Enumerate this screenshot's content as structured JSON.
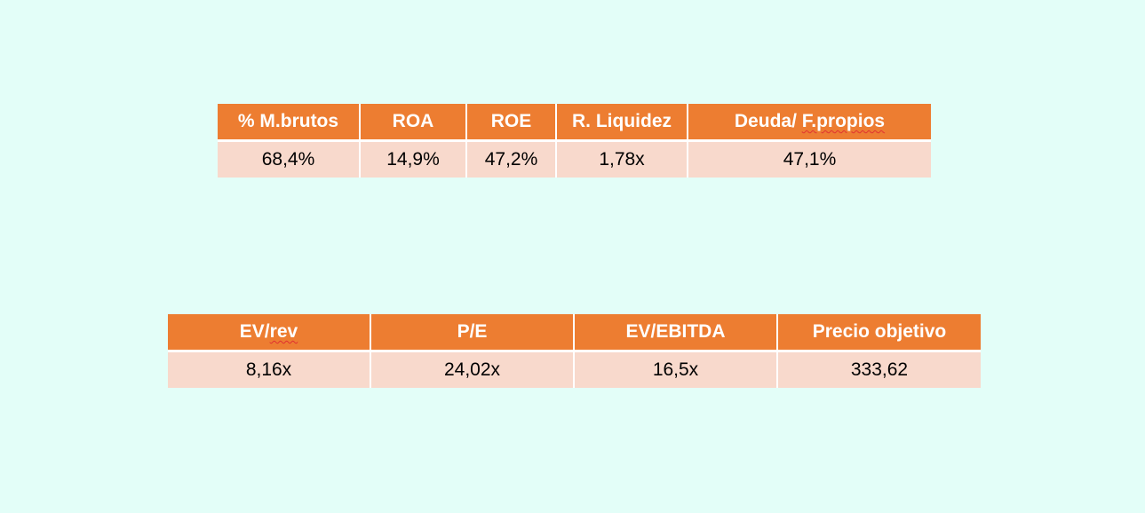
{
  "ratios_table": {
    "headers": [
      "% M.brutos",
      "ROA",
      "ROE",
      "R. Liquidez",
      "Deuda/ ",
      "F.propios"
    ],
    "values": [
      "68,4%",
      "14,9%",
      "47,2%",
      "1,78x",
      "47,1%"
    ]
  },
  "valuation_table": {
    "headers": [
      "EV/",
      "rev",
      "P/E",
      "EV/EBITDA",
      "Precio objetivo"
    ],
    "values": [
      "8,16x",
      "24,02x",
      "16,5x",
      "333,62"
    ]
  },
  "colors": {
    "background": "#E3FEF8",
    "header_fill": "#ED7D31",
    "cell_fill": "#F8D9CC",
    "header_text": "#FFFFFF",
    "spellcheck_underline": "#E03030"
  }
}
